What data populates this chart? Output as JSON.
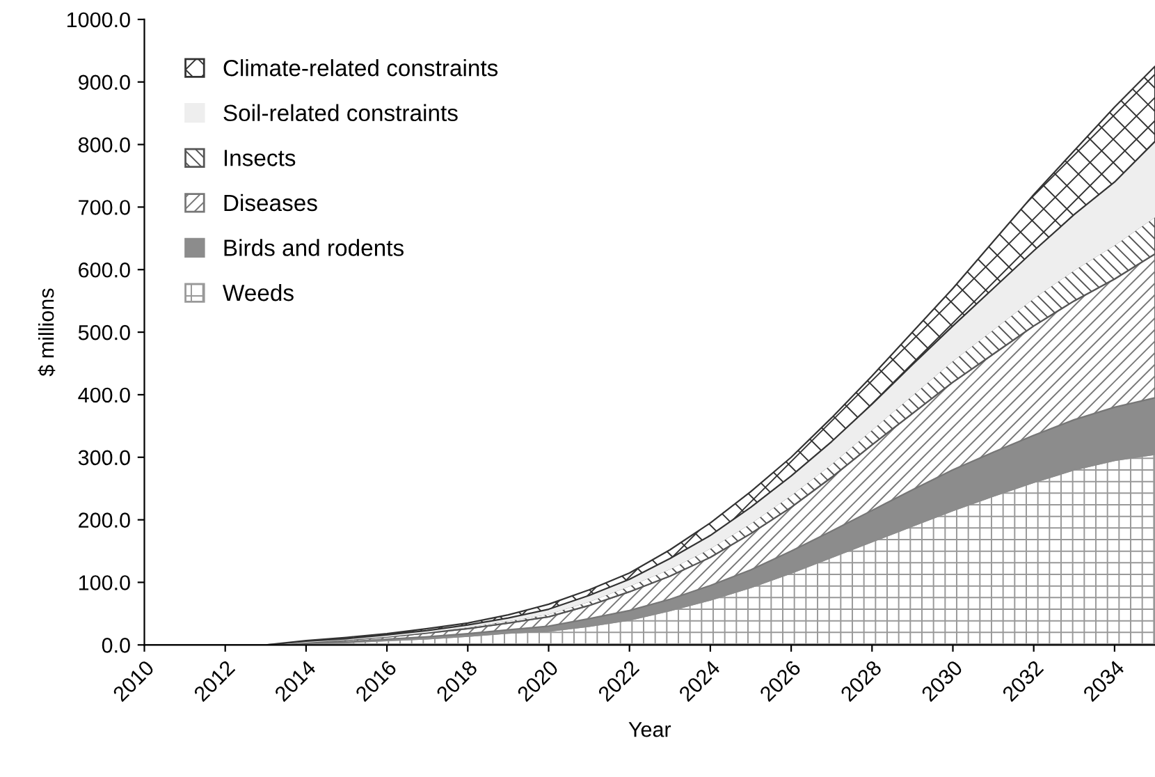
{
  "chart_data": {
    "type": "area",
    "stacked": true,
    "xlabel": "Year",
    "ylabel": "$ millions",
    "legend": "top left",
    "grid": false,
    "x": [
      2010,
      2011,
      2012,
      2013,
      2014,
      2015,
      2016,
      2017,
      2018,
      2019,
      2020,
      2021,
      2022,
      2023,
      2024,
      2025,
      2026,
      2027,
      2028,
      2029,
      2030,
      2031,
      2032,
      2033,
      2034,
      2035
    ],
    "xlim": [
      2010,
      2035
    ],
    "xticks": [
      2010,
      2012,
      2014,
      2016,
      2018,
      2020,
      2022,
      2024,
      2026,
      2028,
      2030,
      2032,
      2034
    ],
    "ylim": [
      0,
      1000
    ],
    "yticks": [
      {
        "value": 0,
        "label": "0.0"
      },
      {
        "value": 100,
        "label": "100.0"
      },
      {
        "value": 200,
        "label": "200.0"
      },
      {
        "value": 300,
        "label": "300.0"
      },
      {
        "value": 400,
        "label": "400.0"
      },
      {
        "value": 500,
        "label": "500.0"
      },
      {
        "value": 600,
        "label": "600.0"
      },
      {
        "value": 700,
        "label": "700.0"
      },
      {
        "value": 800,
        "label": "800.0"
      },
      {
        "value": 900,
        "label": "900.0"
      },
      {
        "value": 1000,
        "label": "1000.0"
      }
    ],
    "series": [
      {
        "name": "Weeds",
        "color": "#999999",
        "values": [
          0,
          0,
          0,
          0,
          2,
          4,
          7,
          10,
          14,
          19,
          22,
          30,
          40,
          55,
          72,
          92,
          115,
          140,
          165,
          190,
          215,
          238,
          260,
          280,
          295,
          305
        ]
      },
      {
        "name": "Birds and rodents",
        "color": "#8c8c8c",
        "values": [
          0,
          0,
          0,
          0,
          1,
          1,
          2,
          3,
          4,
          5,
          8,
          12,
          15,
          18,
          23,
          28,
          35,
          42,
          50,
          58,
          65,
          70,
          75,
          80,
          85,
          90
        ]
      },
      {
        "name": "Diseases",
        "color": "#777777",
        "values": [
          0,
          0,
          0,
          0,
          1,
          3,
          4,
          6,
          8,
          11,
          15,
          21,
          30,
          37,
          45,
          58,
          70,
          86,
          105,
          122,
          140,
          157,
          175,
          190,
          205,
          230
        ]
      },
      {
        "name": "Insects",
        "color": "#555555",
        "values": [
          0,
          0,
          0,
          0,
          1,
          1,
          1,
          2,
          3,
          4,
          5,
          7,
          10,
          12,
          15,
          17,
          20,
          22,
          25,
          30,
          35,
          40,
          45,
          50,
          55,
          60
        ]
      },
      {
        "name": "Soil-related constraints",
        "color": "#eeeeee",
        "values": [
          0,
          0,
          0,
          0,
          1,
          1,
          2,
          2,
          3,
          4,
          7,
          9,
          10,
          16,
          20,
          25,
          30,
          35,
          40,
          48,
          55,
          65,
          75,
          88,
          100,
          120
        ]
      },
      {
        "name": "Climate-related constraints",
        "color": "#333333",
        "values": [
          0,
          0,
          0,
          0,
          1,
          2,
          2,
          3,
          3,
          5,
          8,
          9,
          10,
          14,
          20,
          25,
          30,
          38,
          45,
          52,
          60,
          75,
          90,
          102,
          120,
          120
        ]
      }
    ]
  }
}
